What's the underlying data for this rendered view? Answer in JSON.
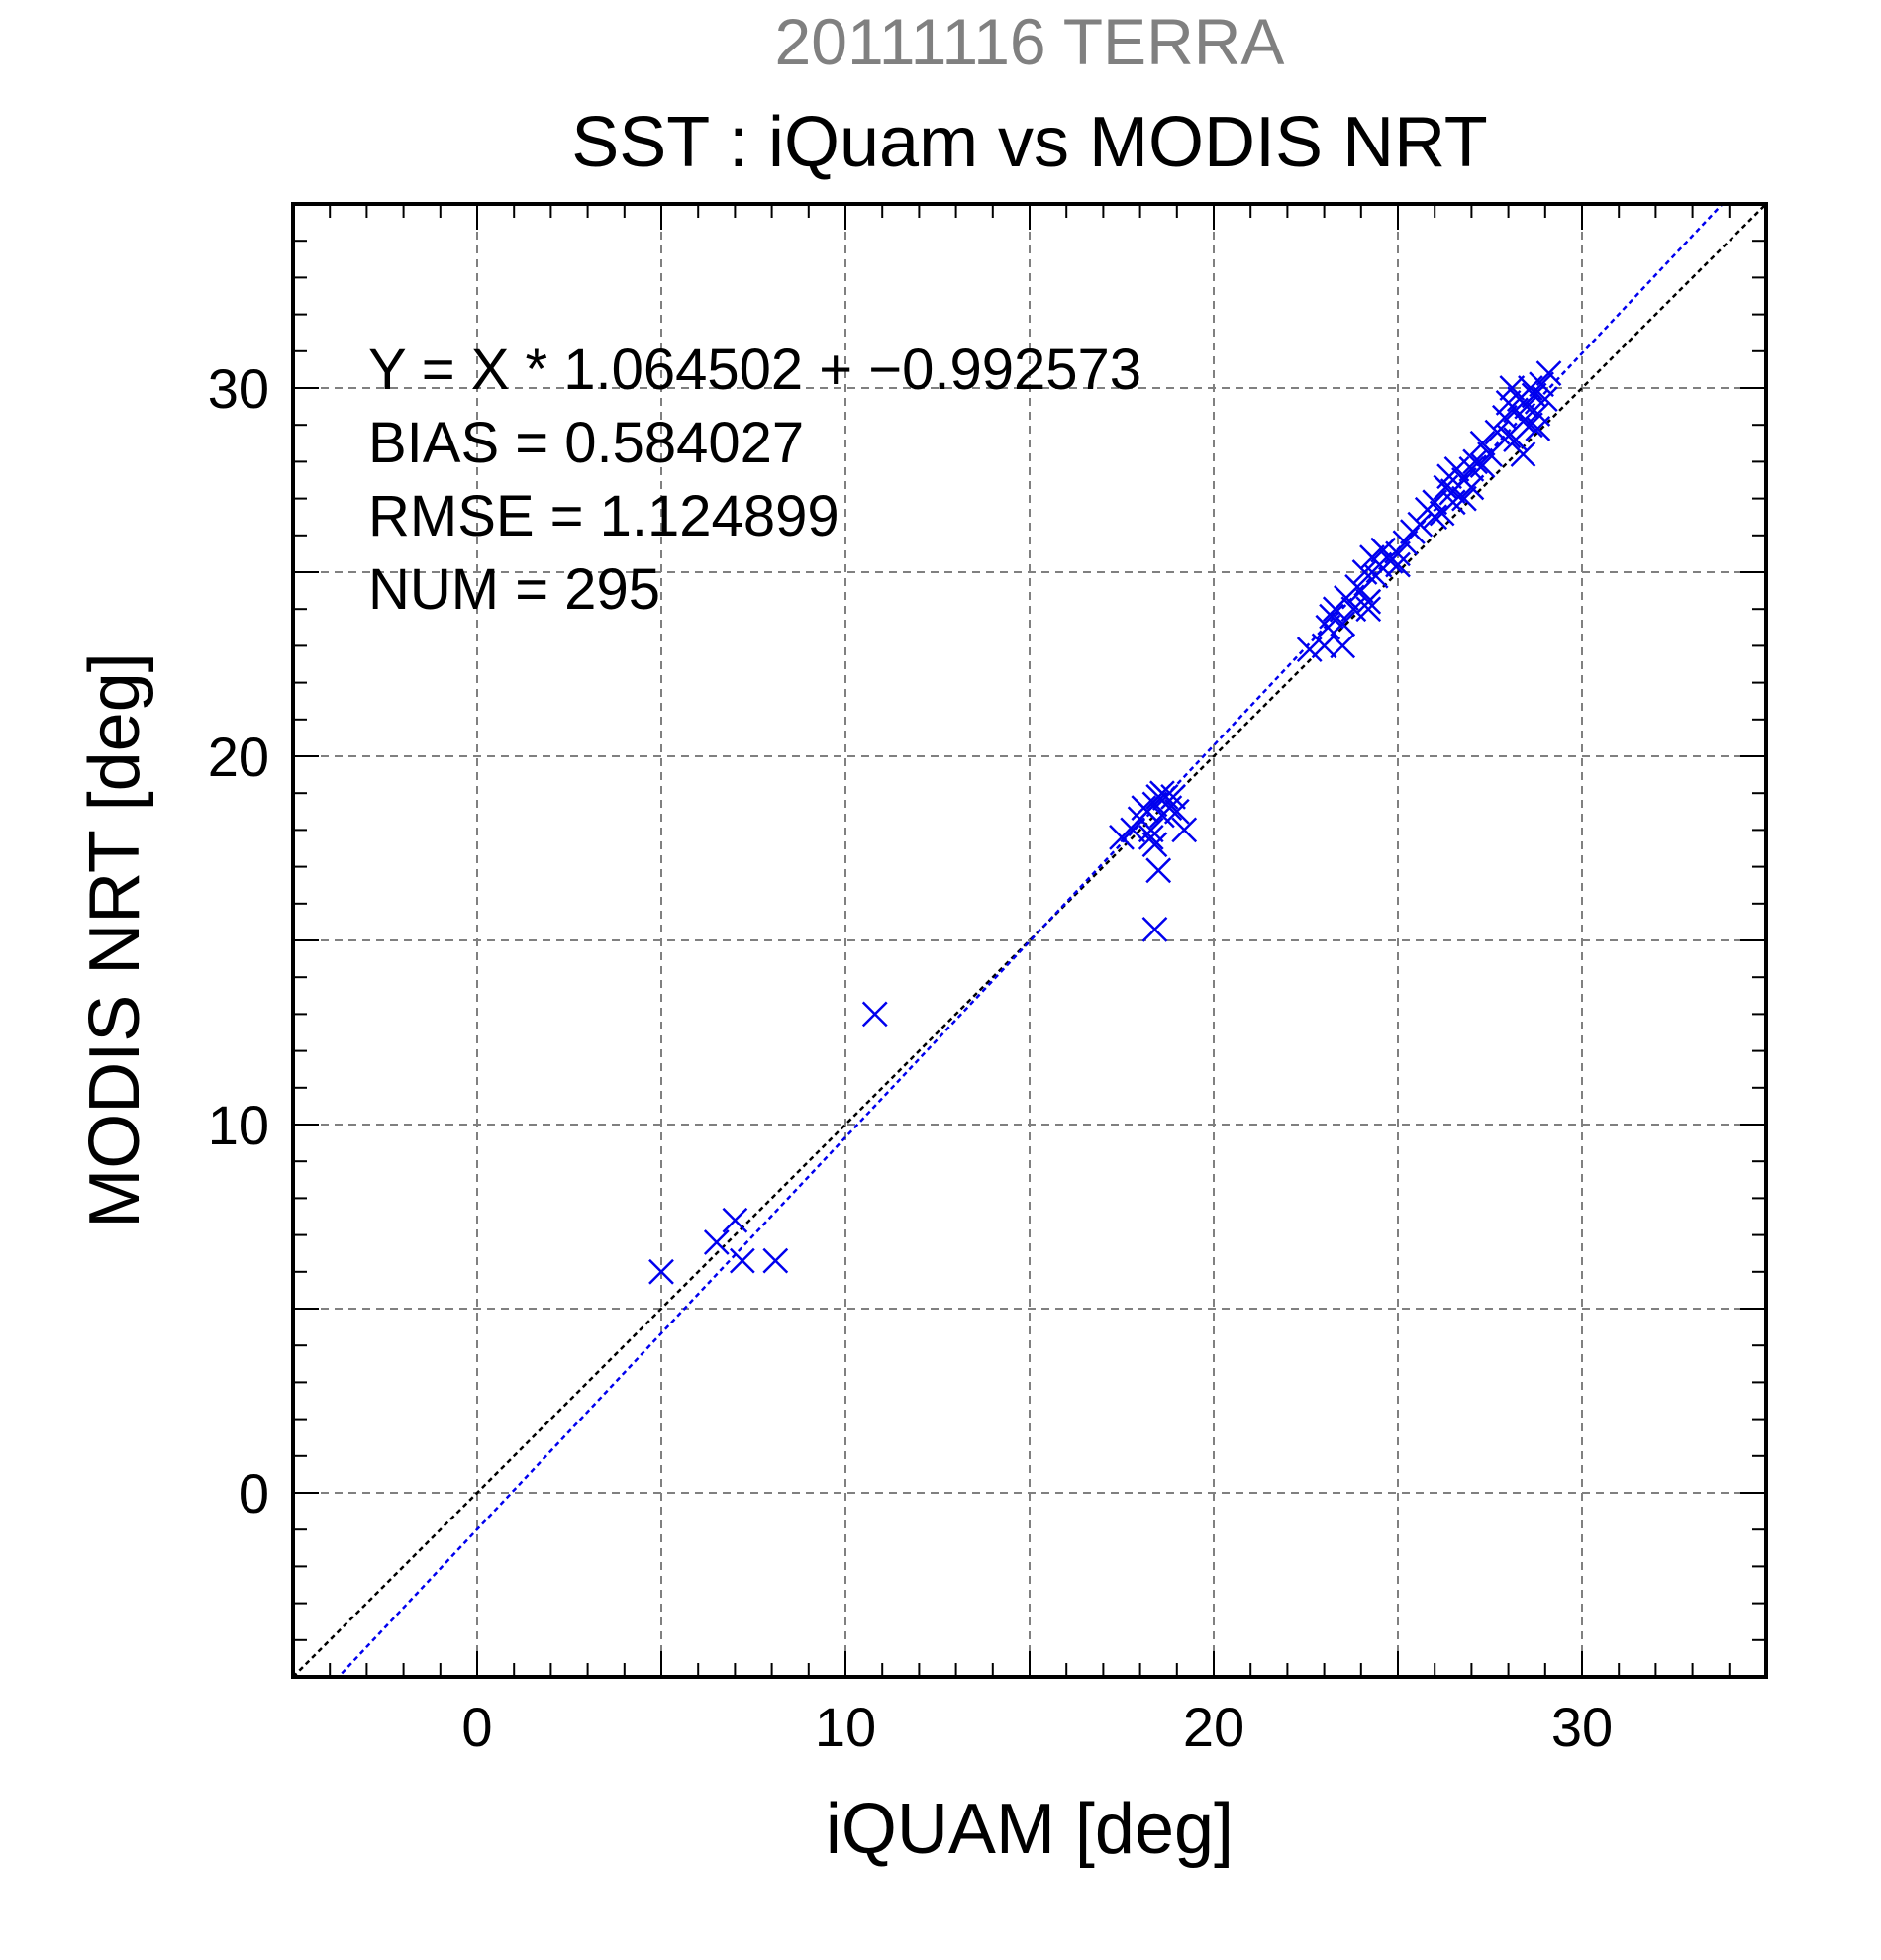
{
  "chart_data": {
    "type": "scatter",
    "supertitle": "20111116 TERRA",
    "title": "SST : iQuam vs MODIS NRT",
    "xlabel": "iQUAM [deg]",
    "ylabel": "MODIS NRT [deg]",
    "xlim": [
      -5,
      35
    ],
    "ylim": [
      -5,
      35
    ],
    "major_ticks": [
      0,
      10,
      20,
      30
    ],
    "tick_labels": [
      "0",
      "10",
      "20",
      "30"
    ],
    "grid_step": 5,
    "minor_tick_step": 1,
    "grid": true,
    "colors": {
      "points": "#0000ee",
      "regression_line": "#0000ee",
      "identity_line": "#000000",
      "supertitle": "#808080",
      "text": "#000000",
      "grid": "#808080"
    },
    "stats": {
      "equation": "Y = X * 1.064502 + −0.992573",
      "bias": "BIAS = 0.584027",
      "rmse": "RMSE = 1.124899",
      "num": "NUM = 295"
    },
    "regression": {
      "slope": 1.064502,
      "intercept": -0.992573
    },
    "identity": {
      "slope": 1,
      "intercept": 0
    },
    "marker": "x",
    "points": [
      [
        5.0,
        6.0
      ],
      [
        6.5,
        6.8
      ],
      [
        7.0,
        7.4
      ],
      [
        7.2,
        6.3
      ],
      [
        8.1,
        6.3
      ],
      [
        10.8,
        13.0
      ],
      [
        17.5,
        17.8
      ],
      [
        17.8,
        18.0
      ],
      [
        18.0,
        18.3
      ],
      [
        18.2,
        18.5
      ],
      [
        18.3,
        18.0
      ],
      [
        18.4,
        18.7
      ],
      [
        18.5,
        18.9
      ],
      [
        18.6,
        18.4
      ],
      [
        18.7,
        18.9
      ],
      [
        18.8,
        18.6
      ],
      [
        18.9,
        18.9
      ],
      [
        19.0,
        18.5
      ],
      [
        19.2,
        18.0
      ],
      [
        18.4,
        17.6
      ],
      [
        18.3,
        17.8
      ],
      [
        18.5,
        16.9
      ],
      [
        18.4,
        15.3
      ],
      [
        18.1,
        18.6
      ],
      [
        18.6,
        19.0
      ],
      [
        22.6,
        22.9
      ],
      [
        23.0,
        23.0
      ],
      [
        23.1,
        23.5
      ],
      [
        23.2,
        23.8
      ],
      [
        23.3,
        24.0
      ],
      [
        23.5,
        23.6
      ],
      [
        23.6,
        24.3
      ],
      [
        23.8,
        24.0
      ],
      [
        23.9,
        24.6
      ],
      [
        24.0,
        24.5
      ],
      [
        24.1,
        25.0
      ],
      [
        24.2,
        24.2
      ],
      [
        24.3,
        25.4
      ],
      [
        24.4,
        24.9
      ],
      [
        24.5,
        25.2
      ],
      [
        24.6,
        25.6
      ],
      [
        24.8,
        25.3
      ],
      [
        25.0,
        25.5
      ],
      [
        25.2,
        25.8
      ],
      [
        25.4,
        26.1
      ],
      [
        25.6,
        26.3
      ],
      [
        25.8,
        26.7
      ],
      [
        26.0,
        26.9
      ],
      [
        26.2,
        26.6
      ],
      [
        26.3,
        27.3
      ],
      [
        26.4,
        27.6
      ],
      [
        26.5,
        26.9
      ],
      [
        26.6,
        27.8
      ],
      [
        26.8,
        27.5
      ],
      [
        27.0,
        27.3
      ],
      [
        27.1,
        28.0
      ],
      [
        27.3,
        28.5
      ],
      [
        27.5,
        28.2
      ],
      [
        27.7,
        28.8
      ],
      [
        27.9,
        29.2
      ],
      [
        28.0,
        29.6
      ],
      [
        28.1,
        30.0
      ],
      [
        28.2,
        29.4
      ],
      [
        28.3,
        29.7
      ],
      [
        28.4,
        29.1
      ],
      [
        28.5,
        29.5
      ],
      [
        28.6,
        29.0
      ],
      [
        28.7,
        29.8
      ],
      [
        28.8,
        29.3
      ],
      [
        28.9,
        30.1
      ],
      [
        29.0,
        29.7
      ],
      [
        29.1,
        30.4
      ],
      [
        28.2,
        28.6
      ],
      [
        28.4,
        28.2
      ],
      [
        28.8,
        28.9
      ],
      [
        26.0,
        26.5
      ],
      [
        26.8,
        27.0
      ],
      [
        23.5,
        23.0
      ],
      [
        24.2,
        24.0
      ],
      [
        25.0,
        25.2
      ],
      [
        26.5,
        27.2
      ],
      [
        27.3,
        27.9
      ],
      [
        28.6,
        30.0
      ],
      [
        28.0,
        28.7
      ],
      [
        27.0,
        27.8
      ]
    ]
  }
}
